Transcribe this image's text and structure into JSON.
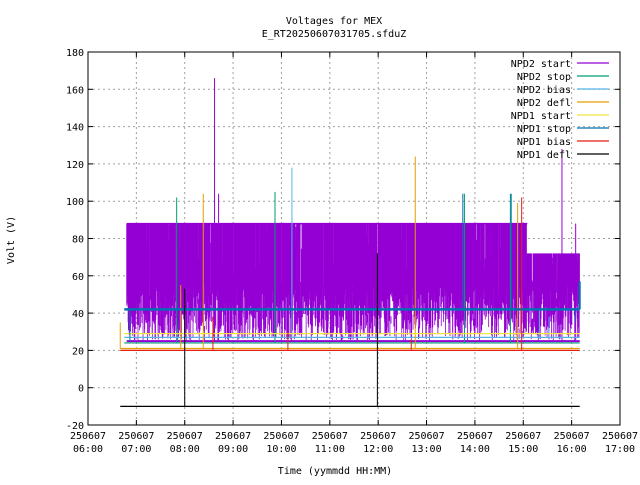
{
  "chart_data": {
    "type": "line",
    "title": "Voltages for MEX",
    "subtitle": "E_RT20250607031705.sfduZ",
    "xlabel": "Time (yymmdd HH:MM)",
    "ylabel": "Volt (V)",
    "xlim": [
      "250607 06:00",
      "250607 17:00"
    ],
    "ylim": [
      -20,
      180
    ],
    "grid": true,
    "legend_position": "top-right",
    "x_ticks": [
      [
        "250607",
        "06:00"
      ],
      [
        "250607",
        "07:00"
      ],
      [
        "250607",
        "08:00"
      ],
      [
        "250607",
        "09:00"
      ],
      [
        "250607",
        "10:00"
      ],
      [
        "250607",
        "11:00"
      ],
      [
        "250607",
        "12:00"
      ],
      [
        "250607",
        "13:00"
      ],
      [
        "250607",
        "14:00"
      ],
      [
        "250607",
        "15:00"
      ],
      [
        "250607",
        "16:00"
      ],
      [
        "250607",
        "17:00"
      ]
    ],
    "y_ticks": [
      -20,
      0,
      20,
      40,
      60,
      80,
      100,
      120,
      140,
      160,
      180
    ],
    "series": [
      {
        "name": "NPD2 start",
        "color": "#9400d3",
        "style": "dense-band",
        "band": [
          25,
          88
        ],
        "band_alt_top": 72,
        "band_alt_from": "250607 15:05",
        "spikes": [
          [
            "250607 08:37",
            166
          ],
          [
            "250607 08:42",
            104
          ],
          [
            "250607 15:48",
            128
          ],
          [
            "250607 16:05",
            88
          ]
        ]
      },
      {
        "name": "NPD2 stop",
        "color": "#009e73",
        "style": "baseline-spikes",
        "points": [
          [
            "250607 06:45",
            24
          ],
          [
            "250607 16:10",
            24
          ]
        ],
        "spikes": [
          [
            "250607 07:50",
            102
          ],
          [
            "250607 09:52",
            105
          ],
          [
            "250607 13:47",
            104
          ],
          [
            "250607 14:44",
            104
          ]
        ]
      },
      {
        "name": "NPD2 bias",
        "color": "#56b4e9",
        "style": "baseline-spikes",
        "points": [
          [
            "250607 06:45",
            27
          ],
          [
            "250607 16:10",
            27
          ]
        ],
        "spikes": [
          [
            "250607 10:13",
            118
          ],
          [
            "250607 15:20",
            42
          ],
          [
            "250607 15:32",
            38
          ]
        ]
      },
      {
        "name": "NPD2 defl",
        "color": "#e69f00",
        "style": "baseline-spikes",
        "points": [
          [
            "250607 06:40",
            21
          ],
          [
            "250607 16:10",
            21
          ]
        ],
        "spikes": [
          [
            "250607 06:40",
            35
          ],
          [
            "250607 07:55",
            55
          ],
          [
            "250607 08:23",
            104
          ],
          [
            "250607 12:46",
            124
          ],
          [
            "250607 14:53",
            99
          ]
        ]
      },
      {
        "name": "NPD1 start",
        "color": "#f0e442",
        "style": "baseline-spikes",
        "points": [
          [
            "250607 06:45",
            29
          ],
          [
            "250607 16:10",
            29
          ]
        ],
        "spikes": []
      },
      {
        "name": "NPD1 stop",
        "color": "#0072b2",
        "style": "baseline-spikes",
        "points": [
          [
            "250607 06:45",
            42
          ],
          [
            "250607 16:10",
            42
          ]
        ],
        "spikes": [
          [
            "250607 06:52",
            25
          ],
          [
            "250607 13:45",
            104
          ],
          [
            "250607 14:45",
            104
          ],
          [
            "250607 16:05",
            35
          ],
          [
            "250607 16:10",
            57
          ]
        ]
      },
      {
        "name": "NPD1 bias",
        "color": "#e51e10",
        "style": "baseline-spikes",
        "points": [
          [
            "250607 06:40",
            20
          ],
          [
            "250607 16:10",
            20
          ]
        ],
        "spikes": [
          [
            "250607 08:35",
            38
          ],
          [
            "250607 10:08",
            30
          ],
          [
            "250607 12:41",
            26
          ],
          [
            "250607 14:58",
            102
          ]
        ]
      },
      {
        "name": "NPD1 defl",
        "color": "#000000",
        "style": "baseline-spikes",
        "points": [
          [
            "250607 06:40",
            -10
          ],
          [
            "250607 16:10",
            -10
          ]
        ],
        "spikes": [
          [
            "250607 08:00",
            53
          ],
          [
            "250607 11:59",
            72
          ]
        ]
      }
    ]
  }
}
